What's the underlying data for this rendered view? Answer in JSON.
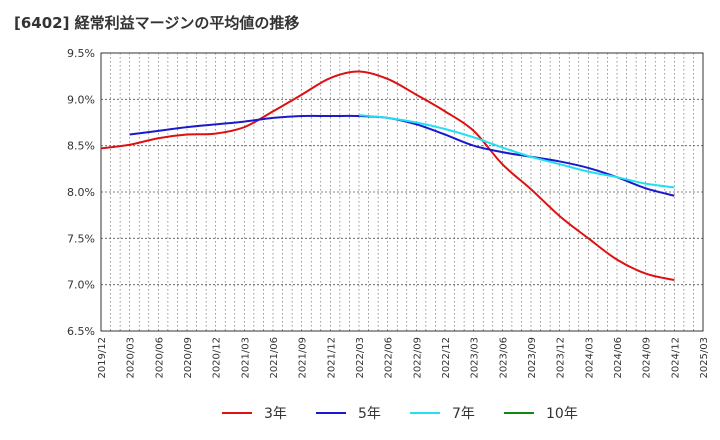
{
  "chart_data": {
    "type": "line",
    "title": "[6402]  経常利益マージンの平均値の推移",
    "xlabel": "",
    "ylabel": "",
    "x": [
      "2019/12",
      "2020/03",
      "2020/06",
      "2020/09",
      "2020/12",
      "2021/03",
      "2021/06",
      "2021/09",
      "2021/12",
      "2022/03",
      "2022/06",
      "2022/09",
      "2022/12",
      "2023/03",
      "2023/06",
      "2023/09",
      "2023/12",
      "2024/03",
      "2024/06",
      "2024/09",
      "2024/12",
      "2025/03"
    ],
    "ylim": [
      6.5,
      9.5
    ],
    "yticks": [
      6.5,
      7.0,
      7.5,
      8.0,
      8.5,
      9.0,
      9.5
    ],
    "ytick_labels": [
      "6.5%",
      "7.0%",
      "7.5%",
      "8.0%",
      "8.5%",
      "9.0%",
      "9.5%"
    ],
    "grid": true,
    "legend_position": "bottom",
    "series": [
      {
        "name": "3年",
        "color": "#dd1111",
        "values": [
          8.47,
          8.51,
          8.58,
          8.62,
          8.63,
          8.7,
          8.87,
          9.05,
          9.23,
          9.3,
          9.22,
          9.05,
          8.87,
          8.66,
          8.3,
          8.03,
          7.74,
          7.5,
          7.27,
          7.12,
          7.05,
          null
        ]
      },
      {
        "name": "5年",
        "color": "#1a1acc",
        "values": [
          null,
          8.62,
          8.66,
          8.7,
          8.73,
          8.76,
          8.8,
          8.82,
          8.82,
          8.82,
          8.8,
          8.73,
          8.62,
          8.5,
          8.43,
          8.38,
          8.33,
          8.26,
          8.16,
          8.04,
          7.96,
          null
        ]
      },
      {
        "name": "7年",
        "color": "#22e0f0",
        "values": [
          null,
          null,
          null,
          null,
          null,
          null,
          null,
          null,
          null,
          8.83,
          8.8,
          8.75,
          8.68,
          8.59,
          8.48,
          8.38,
          8.3,
          8.22,
          8.16,
          8.09,
          8.05,
          null
        ]
      },
      {
        "name": "10年",
        "color": "#118811",
        "values": [
          null,
          null,
          null,
          null,
          null,
          null,
          null,
          null,
          null,
          null,
          null,
          null,
          null,
          null,
          null,
          null,
          null,
          null,
          null,
          null,
          null,
          null
        ]
      }
    ]
  }
}
